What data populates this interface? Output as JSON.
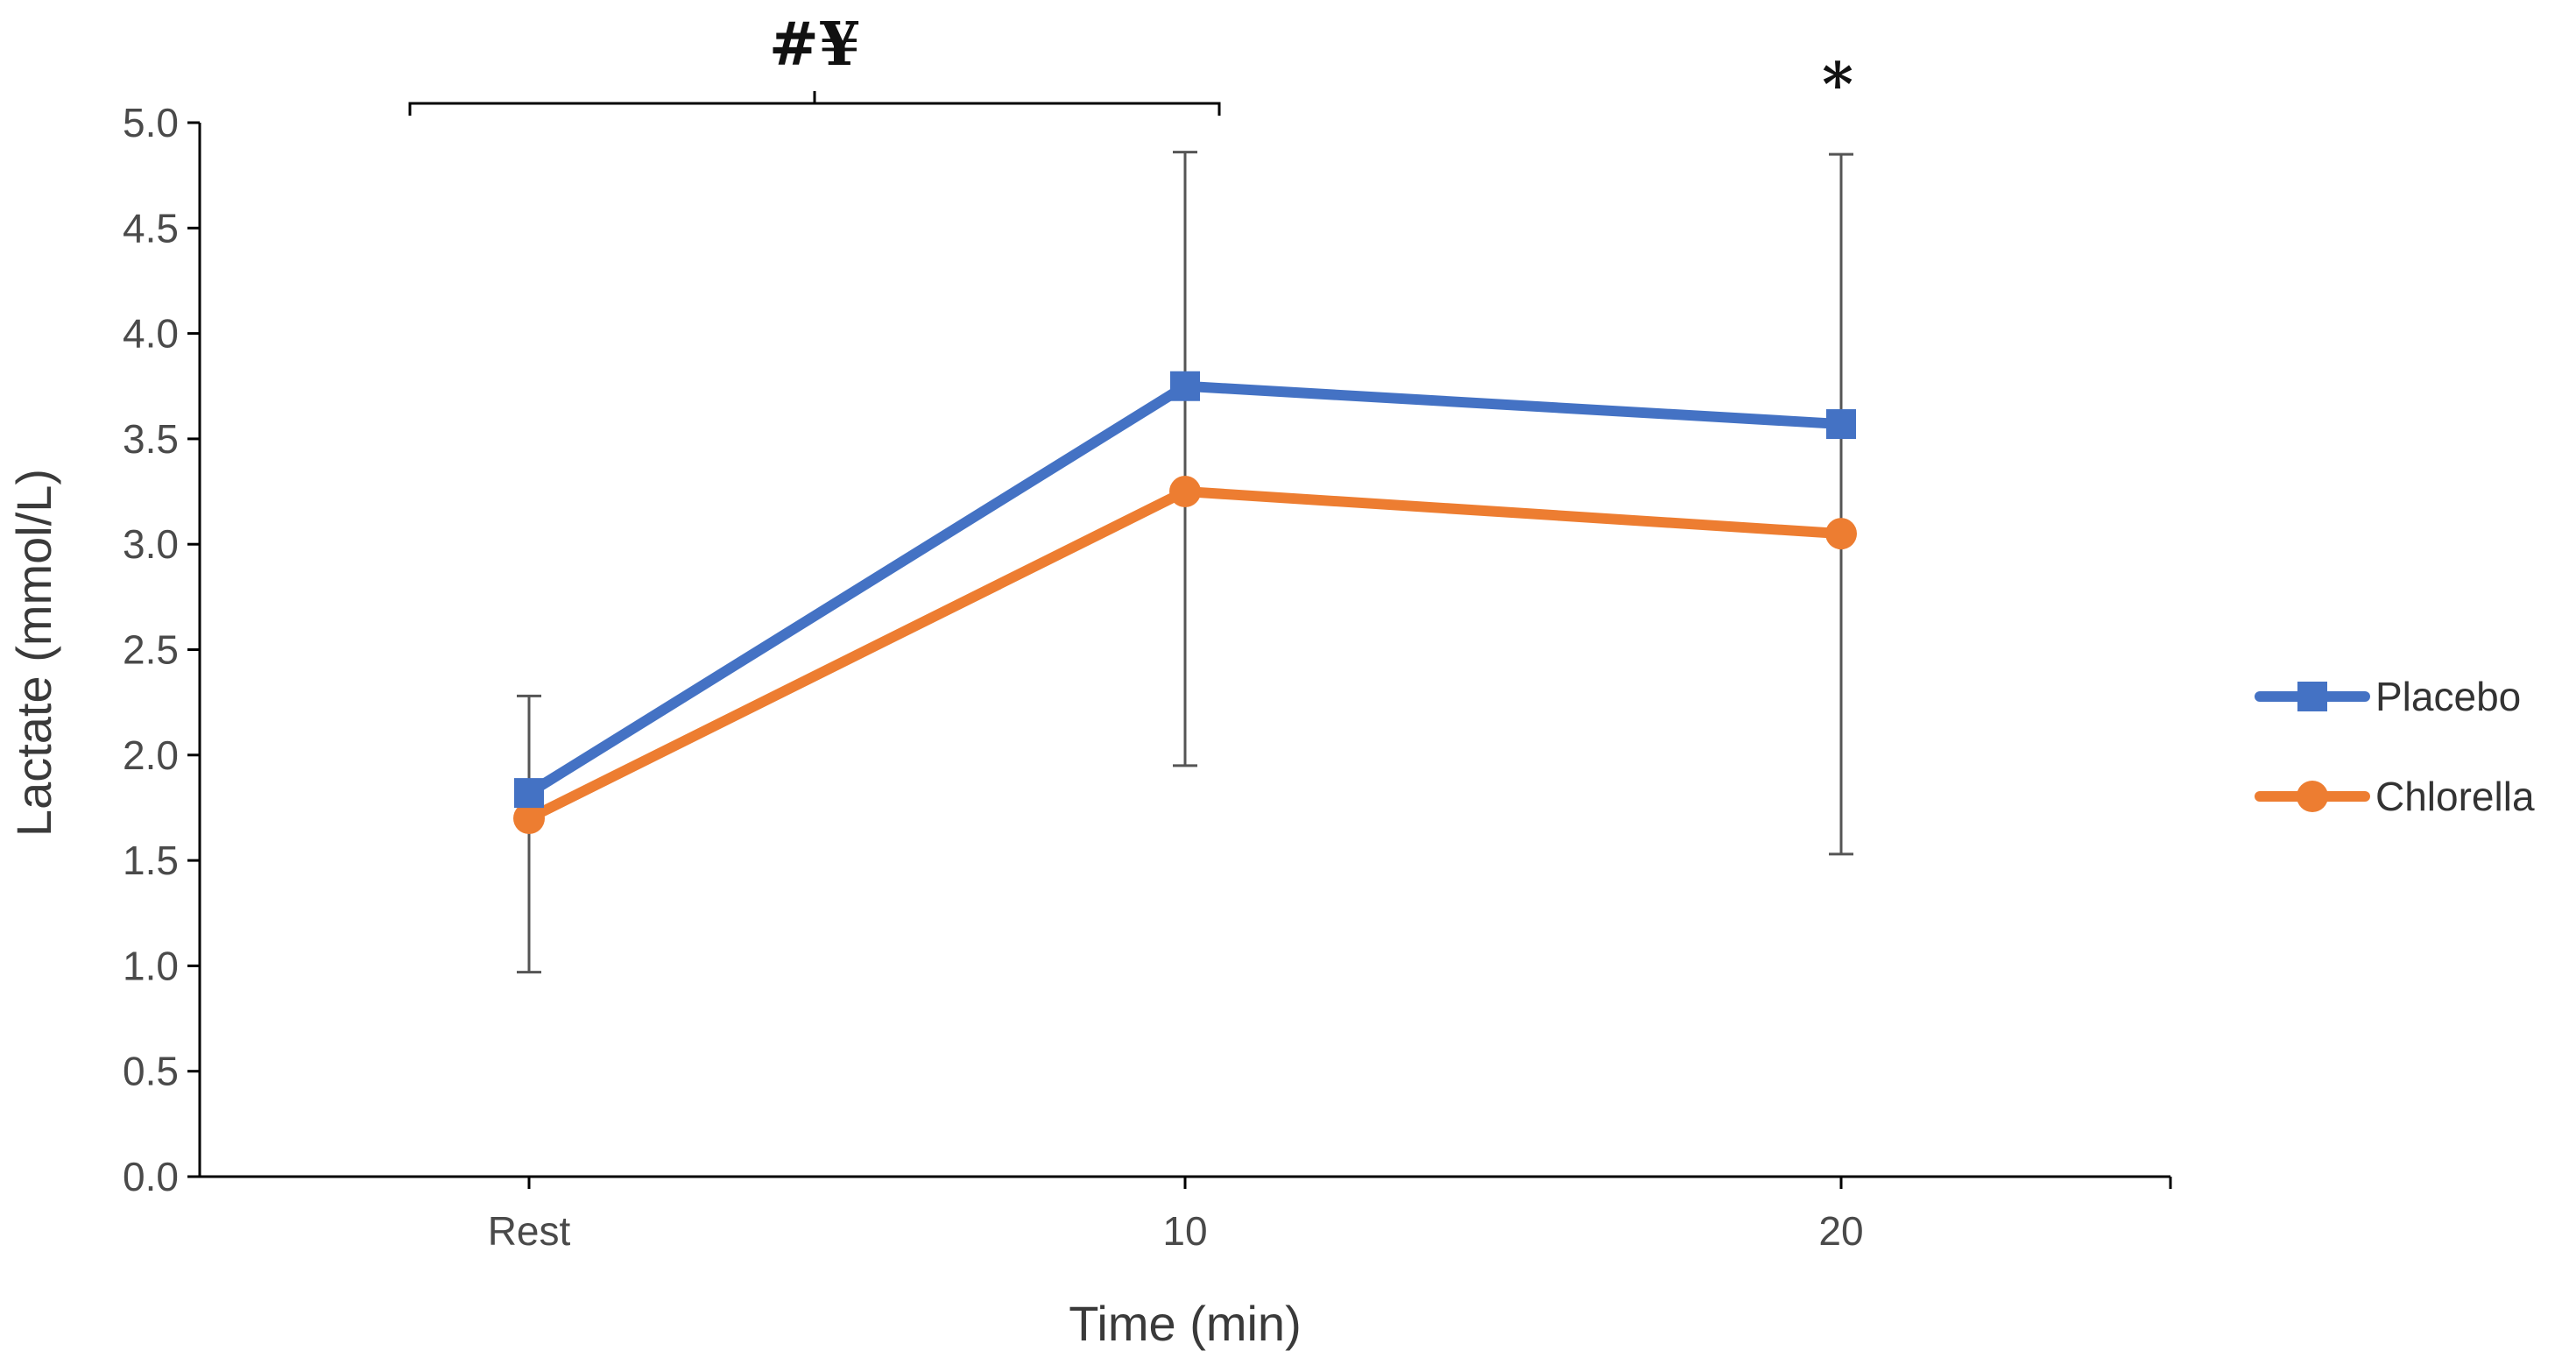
{
  "chart_data": {
    "type": "line",
    "title": "",
    "xlabel": "Time (min)",
    "ylabel": "Lactate (mmol/L)",
    "categories": [
      "Rest",
      "10",
      "20"
    ],
    "ylim": [
      0,
      5
    ],
    "ytick_values": [
      0,
      0.5,
      1,
      1.5,
      2,
      2.5,
      3,
      3.5,
      4,
      4.5,
      5
    ],
    "ytick_labels": [
      "0.0",
      "0.5",
      "1.0",
      "1.5",
      "2.0",
      "2.5",
      "3.0",
      "3.5",
      "4.0",
      "4.5",
      "5.0"
    ],
    "grid": false,
    "legend_position": "right",
    "series": [
      {
        "name": "Placebo",
        "color": "#4472C4",
        "marker": "square",
        "values": [
          1.82,
          3.75,
          3.57
        ],
        "error_low": [
          0.97,
          1.95,
          1.53
        ],
        "error_high": [
          2.28,
          4.86,
          4.85
        ]
      },
      {
        "name": "Chlorella",
        "color": "#ED7D31",
        "marker": "circle",
        "values": [
          1.7,
          3.25,
          3.05
        ]
      }
    ],
    "annotations": [
      {
        "text": "#¥",
        "type": "bracket",
        "from": "Rest",
        "to": "10"
      },
      {
        "text": "*",
        "type": "point",
        "at": "20"
      }
    ]
  }
}
